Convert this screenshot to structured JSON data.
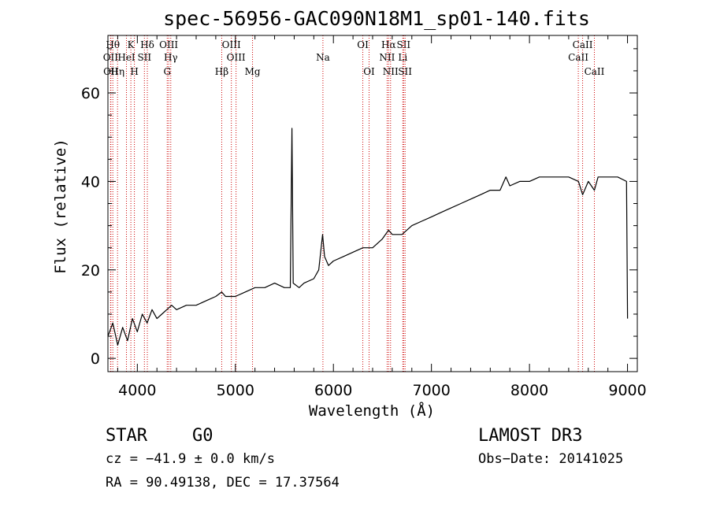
{
  "chart_data": {
    "type": "line",
    "title": "spec-56956-GAC090N18M1_sp01-140.fits",
    "xlabel": "Wavelength (Å)",
    "ylabel": "Flux (relative)",
    "xlim": [
      3700,
      9100
    ],
    "ylim": [
      -3,
      73
    ],
    "xticks": [
      4000,
      5000,
      6000,
      7000,
      8000,
      9000
    ],
    "yticks": [
      0,
      20,
      40,
      60
    ],
    "grid": false,
    "line_color": "#000000",
    "marker_color": "#cc0000",
    "series": [
      {
        "name": "spectrum",
        "x": [
          3700,
          3750,
          3800,
          3850,
          3900,
          3950,
          4000,
          4050,
          4100,
          4150,
          4200,
          4250,
          4300,
          4350,
          4400,
          4500,
          4600,
          4700,
          4800,
          4860,
          4900,
          5000,
          5100,
          5200,
          5300,
          5400,
          5500,
          5560,
          5577,
          5590,
          5650,
          5700,
          5800,
          5850,
          5890,
          5910,
          5950,
          6000,
          6100,
          6200,
          6300,
          6400,
          6500,
          6563,
          6600,
          6700,
          6800,
          6900,
          7000,
          7100,
          7200,
          7300,
          7400,
          7500,
          7600,
          7700,
          7760,
          7800,
          7900,
          8000,
          8100,
          8200,
          8300,
          8400,
          8500,
          8542,
          8600,
          8662,
          8700,
          8800,
          8900,
          8990,
          9000
        ],
        "y": [
          5,
          8,
          3,
          7,
          4,
          9,
          6,
          10,
          8,
          11,
          9,
          10,
          11,
          12,
          11,
          12,
          12,
          13,
          14,
          15,
          14,
          14,
          15,
          16,
          16,
          17,
          16,
          16,
          52,
          17,
          16,
          17,
          18,
          20,
          28,
          23,
          21,
          22,
          23,
          24,
          25,
          25,
          27,
          29,
          28,
          28,
          30,
          31,
          32,
          33,
          34,
          35,
          36,
          37,
          38,
          38,
          41,
          39,
          40,
          40,
          41,
          41,
          41,
          41,
          40,
          37,
          40,
          38,
          41,
          41,
          41,
          40,
          9
        ]
      }
    ],
    "line_markers": [
      {
        "lambda": 3750,
        "row": 1,
        "label": "Hθ"
      },
      {
        "lambda": 3727,
        "row": 2,
        "label": "OII"
      },
      {
        "lambda": 3730,
        "row": 3,
        "label": "OII"
      },
      {
        "lambda": 3798,
        "row": 3,
        "label": "Hη"
      },
      {
        "lambda": 3889,
        "row": 2,
        "label": "HeI"
      },
      {
        "lambda": 3934,
        "row": 1,
        "label": "K"
      },
      {
        "lambda": 3970,
        "row": 3,
        "label": "H"
      },
      {
        "lambda": 4072,
        "row": 2,
        "label": "SII"
      },
      {
        "lambda": 4102,
        "row": 1,
        "label": "Hδ"
      },
      {
        "lambda": 4320,
        "row": 1,
        "label": "OIII"
      },
      {
        "lambda": 4341,
        "row": 2,
        "label": "Hγ"
      },
      {
        "lambda": 4305,
        "row": 3,
        "label": "G"
      },
      {
        "lambda": 4861,
        "row": 3,
        "label": "Hβ"
      },
      {
        "lambda": 4959,
        "row": 1,
        "label": "OIII"
      },
      {
        "lambda": 5007,
        "row": 2,
        "label": "OIII"
      },
      {
        "lambda": 5175,
        "row": 3,
        "label": "Mg"
      },
      {
        "lambda": 5893,
        "row": 2,
        "label": "Na"
      },
      {
        "lambda": 6300,
        "row": 1,
        "label": "OI"
      },
      {
        "lambda": 6364,
        "row": 3,
        "label": "OI"
      },
      {
        "lambda": 6563,
        "row": 1,
        "label": "Hα"
      },
      {
        "lambda": 6548,
        "row": 2,
        "label": "NII"
      },
      {
        "lambda": 6583,
        "row": 3,
        "label": "NII"
      },
      {
        "lambda": 6716,
        "row": 1,
        "label": "SII"
      },
      {
        "lambda": 6708,
        "row": 2,
        "label": "Li"
      },
      {
        "lambda": 6731,
        "row": 3,
        "label": "SII"
      },
      {
        "lambda": 8542,
        "row": 1,
        "label": "CaII"
      },
      {
        "lambda": 8498,
        "row": 2,
        "label": "CaII"
      },
      {
        "lambda": 8662,
        "row": 3,
        "label": "CaII"
      }
    ]
  },
  "info": {
    "class": "STAR",
    "subclass": "G0",
    "survey": "LAMOST DR3",
    "cz": "cz = −41.9 ± 0.0 km/s",
    "obs_date": "Obs−Date: 20141025",
    "radec": "RA =  90.49138, DEC =  17.37564"
  }
}
